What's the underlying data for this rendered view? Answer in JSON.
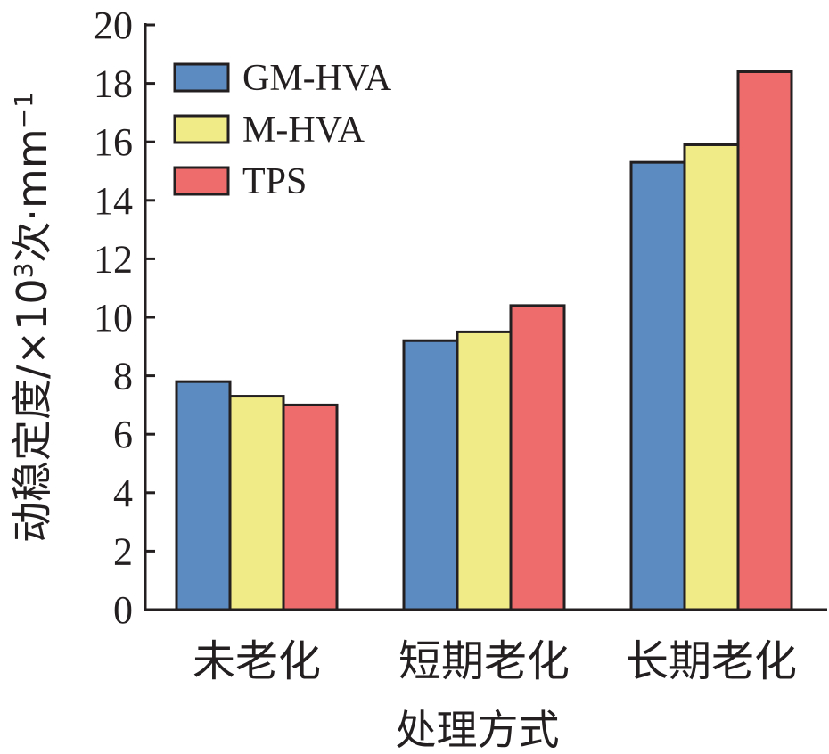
{
  "chart_data": {
    "type": "bar",
    "categories": [
      "未老化",
      "短期老化",
      "长期老化"
    ],
    "series": [
      {
        "name": "GM-HVA",
        "color": "#5b8bc0",
        "values": [
          7.8,
          9.2,
          15.3
        ]
      },
      {
        "name": "M-HVA",
        "color": "#f0ea87",
        "values": [
          7.3,
          9.5,
          15.9
        ]
      },
      {
        "name": "TPS",
        "color": "#ef6c6c",
        "values": [
          7.0,
          10.4,
          18.4
        ]
      }
    ],
    "xlabel": "处理方式",
    "ylabel_main": "动稳定度/×10",
    "ylabel_sup": "3",
    "ylabel_tail": "次·mm",
    "ylabel_tail_sup": "−1",
    "ylim": [
      0,
      20
    ],
    "yticks": [
      "0",
      "2",
      "4",
      "6",
      "8",
      "10",
      "12",
      "14",
      "16",
      "18",
      "20"
    ],
    "grid": false,
    "legend_position": "top-left"
  }
}
